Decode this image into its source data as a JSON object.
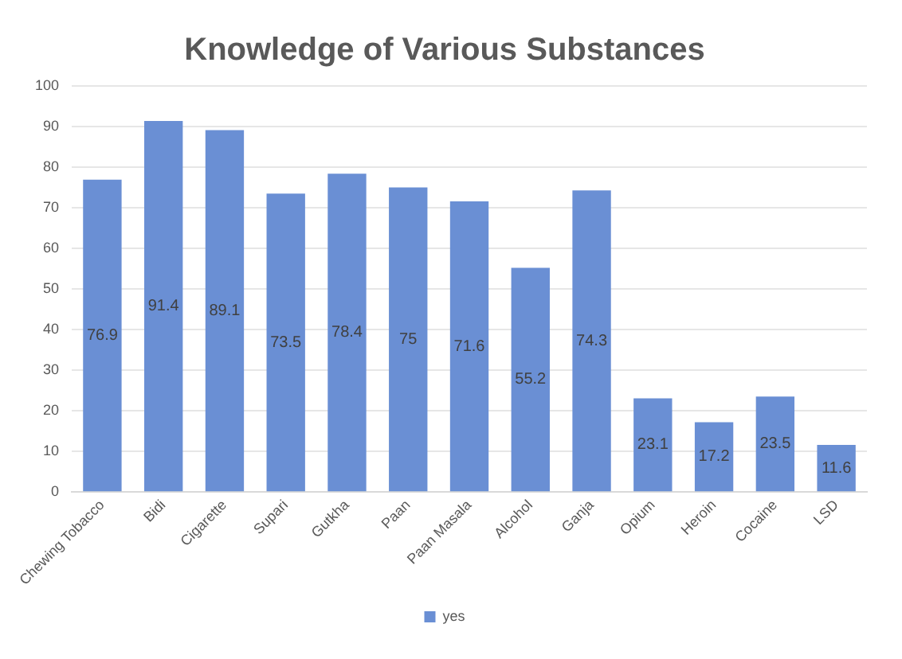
{
  "chart_data": {
    "type": "bar",
    "title": "Knowledge of Various Substances",
    "categories": [
      "Chewing Tobacco",
      "Bidi",
      "Cigarette",
      "Supari",
      "Gutkha",
      "Paan",
      "Paan Masala",
      "Alcohol",
      "Ganja",
      "Opium",
      "Heroin",
      "Cocaine",
      "LSD"
    ],
    "series": [
      {
        "name": "yes",
        "color": "#6a8fd4",
        "values": [
          76.9,
          91.4,
          89.1,
          73.5,
          78.4,
          75,
          71.6,
          55.2,
          74.3,
          23.1,
          17.2,
          23.5,
          11.6
        ]
      }
    ],
    "ylim": [
      0,
      100
    ],
    "yticks": [
      0,
      10,
      20,
      30,
      40,
      50,
      60,
      70,
      80,
      90,
      100
    ],
    "grid": "y",
    "legend": "bottom",
    "data_labels": true
  }
}
